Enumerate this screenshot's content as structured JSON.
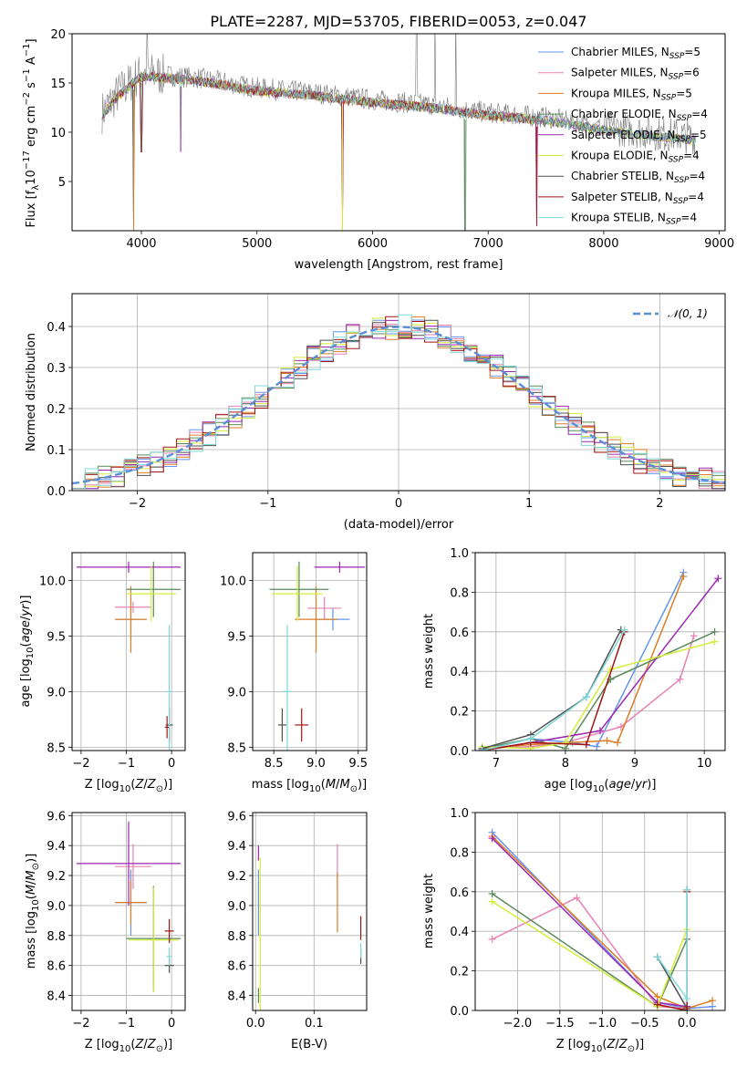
{
  "colors": [
    "#6495ed",
    "#e882b4",
    "#de7c26",
    "#5a8a5a",
    "#9c27b0",
    "#d4ed3a",
    "#505050",
    "#a31515",
    "#7fd8d8"
  ],
  "legend": [
    {
      "base": "Chabrier MILES, N",
      "sub": "SSP",
      "tail": "=5"
    },
    {
      "base": "Salpeter MILES, N",
      "sub": "SSP",
      "tail": "=6"
    },
    {
      "base": "Kroupa MILES, N",
      "sub": "SSP",
      "tail": "=5"
    },
    {
      "base": "Chabrier ELODIE, N",
      "sub": "SSP",
      "tail": "=4"
    },
    {
      "base": "Salpeter ELODIE, N",
      "sub": "SSP",
      "tail": "=5"
    },
    {
      "base": "Kroupa ELODIE, N",
      "sub": "SSP",
      "tail": "=4"
    },
    {
      "base": "Chabrier STELIB, N",
      "sub": "SSP",
      "tail": "=4"
    },
    {
      "base": "Salpeter STELIB, N",
      "sub": "SSP",
      "tail": "=4"
    },
    {
      "base": "Kroupa STELIB, N",
      "sub": "SSP",
      "tail": "=4"
    }
  ],
  "chart_data": [
    {
      "type": "line",
      "title": "PLATE=2287, MJD=53705, FIBERID=0053, z=0.047",
      "xlabel": "wavelength [Angstrom, rest frame]",
      "ylabel": "Flux [fλ10⁻¹⁷ erg cm⁻² s⁻¹ A⁻¹]",
      "xlim": [
        3400,
        9050
      ],
      "ylim": [
        0,
        20
      ],
      "xticks": [
        4000,
        5000,
        6000,
        7000,
        8000,
        9000
      ],
      "yticks": [
        5,
        10,
        15,
        20
      ],
      "grid": false,
      "legend_position": "top-right",
      "x_range_data": [
        3660,
        8800
      ],
      "continuum_anchors": {
        "x": [
          3660,
          3800,
          4000,
          4500,
          5000,
          5500,
          6000,
          6500,
          7000,
          7500,
          8000,
          8500,
          8800
        ],
        "y": [
          12,
          14,
          16,
          15.5,
          14.5,
          14,
          13.3,
          12.8,
          12,
          11.5,
          10.5,
          9.8,
          9.5
        ]
      },
      "dips": [
        {
          "x": 3933,
          "y": 0
        },
        {
          "x": 4000,
          "y": 8
        },
        {
          "x": 4340,
          "y": 8
        },
        {
          "x": 5740,
          "y": 0
        },
        {
          "x": 6800,
          "y": 0
        },
        {
          "x": 7420,
          "y": 0.5
        }
      ],
      "spikes": [
        {
          "x": 4050,
          "y": 20
        },
        {
          "x": 6380,
          "y": 20
        },
        {
          "x": 6540,
          "y": 20
        },
        {
          "x": 6720,
          "y": 20
        }
      ]
    },
    {
      "type": "line",
      "xlabel": "(data-model)/error",
      "ylabel": "Normed distribution",
      "xlim": [
        -2.5,
        2.5
      ],
      "ylim": [
        0,
        0.48
      ],
      "xticks": [
        -2,
        -1,
        0,
        1,
        2
      ],
      "yticks": [
        0.0,
        0.1,
        0.2,
        0.3,
        0.4
      ],
      "grid": true,
      "legend_position": "top-right",
      "reference": {
        "name": "𝒩(0, 1)",
        "mean": 0,
        "sigma": 1,
        "color": "#5b8ed6"
      },
      "histogram_bin_width": 0.1
    },
    {
      "type": "scatter",
      "xlabel": "Z [log10(Z/Z⊙)]",
      "ylabel": "age  [log10(age/yr)]",
      "xlim": [
        -2.2,
        0.3
      ],
      "ylim": [
        8.47,
        10.25
      ],
      "xticks": [
        -2,
        -1,
        0
      ],
      "yticks": [
        8.5,
        9.0,
        9.5,
        10.0
      ],
      "grid": true,
      "points": [
        {
          "x": -0.9,
          "xerr": 0.35,
          "y": 9.65,
          "yerr": 0.1
        },
        {
          "x": -0.85,
          "xerr": 0.4,
          "y": 9.76,
          "yerr": 0.05
        },
        {
          "x": -0.9,
          "xerr": 0.35,
          "y": 9.65,
          "yerr": 0.3
        },
        {
          "x": -0.4,
          "xerr": 0.6,
          "y": 9.92,
          "yerr": 0.25
        },
        {
          "x": -0.95,
          "xerr": 1.15,
          "y": 10.12,
          "yerr": 0.05
        },
        {
          "x": -0.45,
          "xerr": 0.55,
          "y": 9.88,
          "yerr": 0.25
        },
        {
          "x": -0.05,
          "xerr": 0.08,
          "y": 8.7,
          "yerr": 0.15
        },
        {
          "x": -0.1,
          "xerr": 0.05,
          "y": 8.68,
          "yerr": 0.1
        },
        {
          "x": -0.05,
          "xerr": 0.06,
          "y": 9.0,
          "yerr": 0.6
        }
      ]
    },
    {
      "type": "scatter",
      "xlabel": "mass [log10(M/M⊙)]",
      "ylabel": "",
      "xlim": [
        8.25,
        9.6
      ],
      "ylim": [
        8.47,
        10.25
      ],
      "xticks": [
        8.5,
        9.0,
        9.5
      ],
      "yticks": [
        8.5,
        9.0,
        9.5,
        10.0
      ],
      "grid": true,
      "points": [
        {
          "x": 9.2,
          "xerr": 0.2,
          "y": 9.65,
          "yerr": 0.1
        },
        {
          "x": 9.1,
          "xerr": 0.2,
          "y": 9.75,
          "yerr": 0.1
        },
        {
          "x": 9.0,
          "xerr": 0.25,
          "y": 9.65,
          "yerr": 0.3
        },
        {
          "x": 8.8,
          "xerr": 0.35,
          "y": 9.92,
          "yerr": 0.25
        },
        {
          "x": 9.28,
          "xerr": 0.3,
          "y": 10.12,
          "yerr": 0.05
        },
        {
          "x": 8.78,
          "xerr": 0.3,
          "y": 9.88,
          "yerr": 0.25
        },
        {
          "x": 8.6,
          "xerr": 0.05,
          "y": 8.7,
          "yerr": 0.15
        },
        {
          "x": 8.83,
          "xerr": 0.08,
          "y": 8.7,
          "yerr": 0.15
        },
        {
          "x": 8.66,
          "xerr": 0.05,
          "y": 9.0,
          "yerr": 0.6
        }
      ]
    },
    {
      "type": "line",
      "xlabel": "age  [log10(age/yr)]",
      "ylabel": "mass weight",
      "xlim": [
        6.7,
        10.3
      ],
      "ylim": [
        0,
        1.0
      ],
      "xticks": [
        7,
        8,
        9,
        10
      ],
      "yticks": [
        0.0,
        0.2,
        0.4,
        0.6,
        0.8,
        1.0
      ],
      "grid": true,
      "series": [
        {
          "x": [
            6.8,
            7.5,
            8.1,
            8.45,
            9.7
          ],
          "y": [
            0.0,
            0.06,
            0.04,
            0.02,
            0.9
          ]
        },
        {
          "x": [
            6.8,
            7.5,
            8.0,
            8.8,
            9.65,
            9.85
          ],
          "y": [
            0.01,
            0.02,
            0.04,
            0.12,
            0.36,
            0.58
          ]
        },
        {
          "x": [
            6.8,
            7.5,
            8.6,
            8.75,
            9.7
          ],
          "y": [
            0.01,
            0.03,
            0.05,
            0.04,
            0.88
          ]
        },
        {
          "x": [
            6.8,
            7.5,
            8.0,
            8.65,
            10.15
          ],
          "y": [
            0.01,
            0.06,
            0.01,
            0.36,
            0.6
          ]
        },
        {
          "x": [
            6.8,
            7.5,
            8.5,
            10.2
          ],
          "y": [
            0.0,
            0.04,
            0.1,
            0.87
          ]
        },
        {
          "x": [
            6.8,
            7.5,
            8.0,
            8.65,
            10.15
          ],
          "y": [
            0.02,
            0.01,
            0.04,
            0.41,
            0.55
          ]
        },
        {
          "x": [
            6.8,
            7.5,
            8.3,
            8.8
          ],
          "y": [
            0.01,
            0.08,
            0.27,
            0.61
          ]
        },
        {
          "x": [
            6.8,
            7.5,
            8.3,
            8.85
          ],
          "y": [
            0.0,
            0.04,
            0.03,
            0.6
          ]
        },
        {
          "x": [
            6.8,
            7.5,
            8.3,
            8.85
          ],
          "y": [
            0.0,
            0.06,
            0.27,
            0.61
          ]
        }
      ]
    },
    {
      "type": "scatter",
      "xlabel": "Z [log10(Z/Z⊙)]",
      "ylabel": "mass [log10(M/M⊙)]",
      "xlim": [
        -2.2,
        0.3
      ],
      "ylim": [
        8.3,
        9.62
      ],
      "xticks": [
        -2,
        -1,
        0
      ],
      "yticks": [
        8.4,
        8.6,
        8.8,
        9.0,
        9.2,
        9.4,
        9.6
      ],
      "grid": true,
      "points": [
        {
          "x": -0.9,
          "xerr": 0.35,
          "y": 9.02,
          "yerr": 0.22
        },
        {
          "x": -0.85,
          "xerr": 0.4,
          "y": 9.26,
          "yerr": 0.15
        },
        {
          "x": -0.9,
          "xerr": 0.35,
          "y": 9.02,
          "yerr": 0.15
        },
        {
          "x": -0.4,
          "xerr": 0.6,
          "y": 8.78,
          "yerr": 0.35
        },
        {
          "x": -0.95,
          "xerr": 1.15,
          "y": 9.28,
          "yerr": 0.28
        },
        {
          "x": -0.4,
          "xerr": 0.55,
          "y": 8.77,
          "yerr": 0.35
        },
        {
          "x": -0.05,
          "xerr": 0.1,
          "y": 8.6,
          "yerr": 0.05
        },
        {
          "x": -0.05,
          "xerr": 0.1,
          "y": 8.83,
          "yerr": 0.08
        },
        {
          "x": -0.05,
          "xerr": 0.06,
          "y": 8.66,
          "yerr": 0.06
        }
      ]
    },
    {
      "type": "scatter",
      "xlabel": "E(B-V)",
      "ylabel": "",
      "xlim": [
        -0.005,
        0.19
      ],
      "ylim": [
        8.3,
        9.62
      ],
      "xticks": [
        0.0,
        0.1
      ],
      "yticks": [
        8.4,
        8.6,
        8.8,
        9.0,
        9.2,
        9.4,
        9.6
      ],
      "grid": true,
      "points": [
        {
          "x": 0.005,
          "y": 9.02,
          "yerr": 0.22
        },
        {
          "x": 0.14,
          "y": 9.26,
          "yerr": 0.15
        },
        {
          "x": 0.14,
          "y": 9.02,
          "yerr": 0.2
        },
        {
          "x": 0.005,
          "y": 8.4,
          "yerr": 0.05
        },
        {
          "x": 0.005,
          "y": 9.35,
          "yerr": 0.05
        },
        {
          "x": 0.008,
          "y": 8.77,
          "yerr": 0.55
        },
        {
          "x": 0.18,
          "y": 8.66,
          "yerr": 0.05
        },
        {
          "x": 0.18,
          "y": 8.85,
          "yerr": 0.08
        },
        {
          "x": 0.18,
          "y": 8.7,
          "yerr": 0.05
        }
      ]
    },
    {
      "type": "line",
      "xlabel": "Z [log10(Z/Z⊙)]",
      "ylabel": "mass weight",
      "xlim": [
        -2.5,
        0.45
      ],
      "ylim": [
        0,
        1.0
      ],
      "xticks": [
        -2.0,
        -1.5,
        -1.0,
        -0.5,
        0.0
      ],
      "yticks": [
        0.0,
        0.2,
        0.4,
        0.6,
        0.8,
        1.0
      ],
      "grid": true,
      "series": [
        {
          "x": [
            -2.3,
            -0.35,
            0.0,
            0.3
          ],
          "y": [
            0.9,
            0.04,
            0.01,
            0.02
          ]
        },
        {
          "x": [
            -2.3,
            -1.3,
            -0.35,
            0.0
          ],
          "y": [
            0.36,
            0.57,
            0.02,
            0.01
          ]
        },
        {
          "x": [
            -2.3,
            -0.35,
            0.0,
            0.3
          ],
          "y": [
            0.88,
            0.07,
            0.01,
            0.05
          ]
        },
        {
          "x": [
            -2.3,
            -0.35,
            0.0
          ],
          "y": [
            0.59,
            0.02,
            0.36
          ]
        },
        {
          "x": [
            -2.3,
            -0.35,
            0.0
          ],
          "y": [
            0.87,
            0.04,
            0.02
          ]
        },
        {
          "x": [
            -2.3,
            -0.35,
            0.0
          ],
          "y": [
            0.55,
            0.02,
            0.41
          ]
        },
        {
          "x": [
            -0.35,
            0.0,
            0.0
          ],
          "y": [
            0.27,
            0.01,
            0.61
          ]
        },
        {
          "x": [
            -0.35,
            0.0,
            0.0
          ],
          "y": [
            0.03,
            0.0,
            0.6
          ]
        },
        {
          "x": [
            -0.35,
            0.0,
            0.0
          ],
          "y": [
            0.27,
            0.06,
            0.61
          ]
        }
      ]
    }
  ]
}
